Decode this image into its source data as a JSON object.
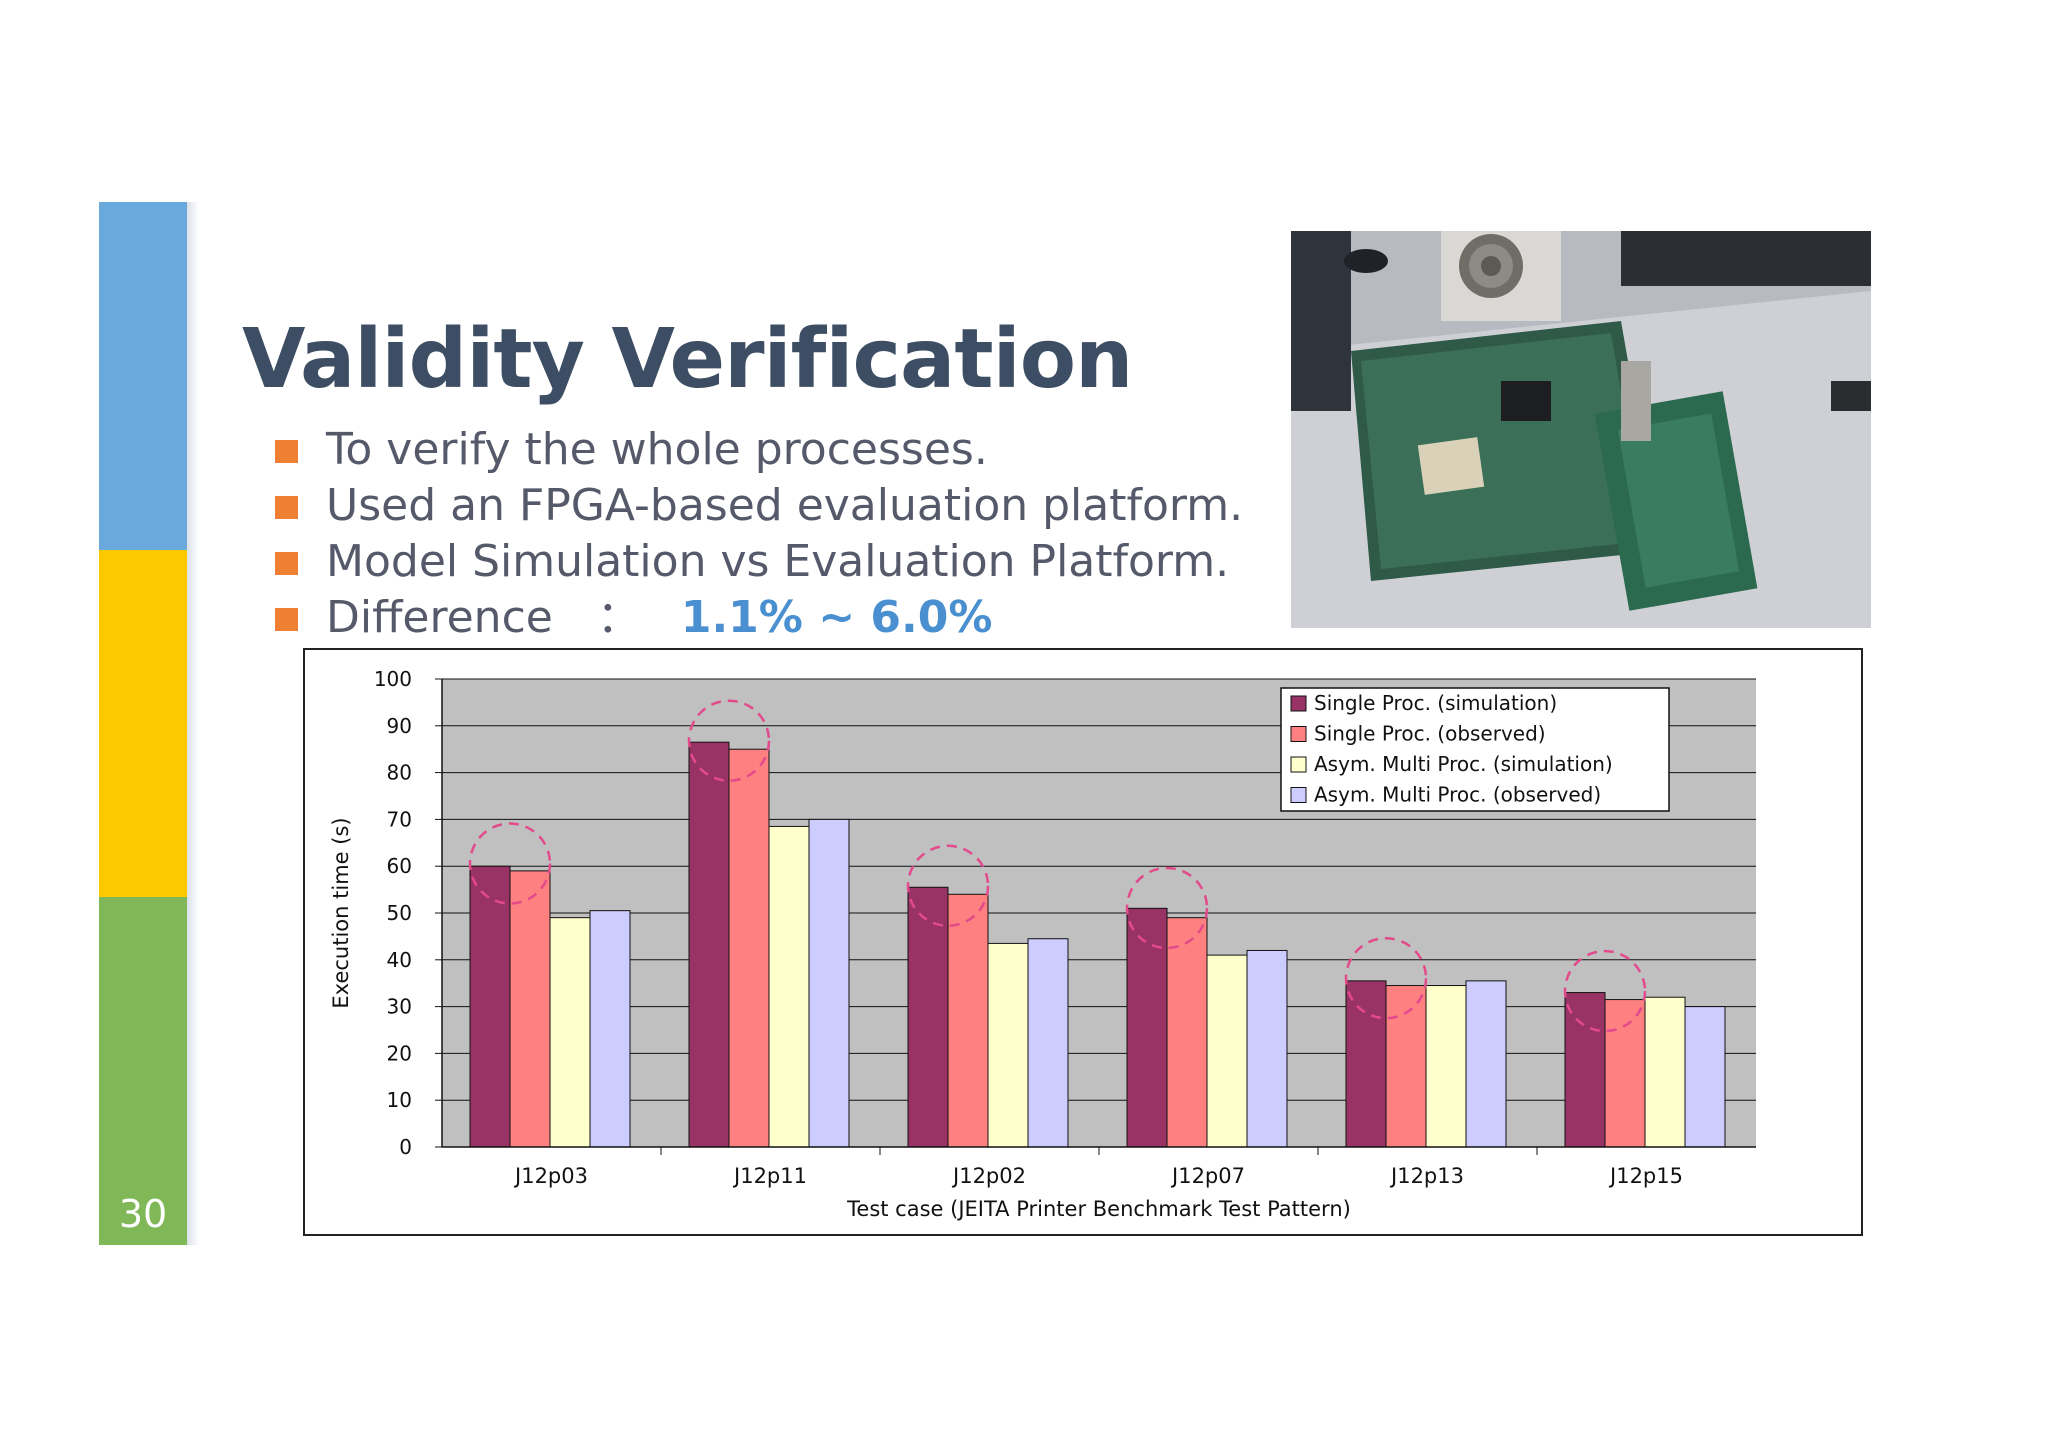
{
  "slide": {
    "page_number": "30",
    "title": "Validity Verification",
    "bullets": [
      "To verify the whole processes.",
      "Used an FPGA-based evaluation platform.",
      "Model Simulation vs Evaluation Platform."
    ],
    "difference_label": "Difference　：",
    "difference_value": "1.1% ~ 6.0%",
    "side_colors": [
      "#6aa9db",
      "#fec900",
      "#80b857"
    ],
    "bullet_color": "#ef7f33",
    "accent_color": "#4a90d0"
  },
  "chart_data": {
    "type": "bar",
    "xlabel": "Test case (JEITA Printer Benchmark Test Pattern)",
    "ylabel": "Execution time (s)",
    "ylim": [
      0,
      100
    ],
    "yticks": [
      0,
      10,
      20,
      30,
      40,
      50,
      60,
      70,
      80,
      90,
      100
    ],
    "grid": true,
    "legend_position": "top-right",
    "categories": [
      "J12p03",
      "J12p11",
      "J12p02",
      "J12p07",
      "J12p13",
      "J12p15"
    ],
    "series": [
      {
        "name": "Single Proc. (simulation)",
        "color": "#993366",
        "values": [
          60,
          86.5,
          55.5,
          51,
          35.5,
          33
        ]
      },
      {
        "name": "Single Proc. (observed)",
        "color": "#ff8080",
        "values": [
          59,
          85,
          54,
          49,
          34.5,
          31.5
        ]
      },
      {
        "name": "Asym. Multi Proc. (simulation)",
        "color": "#ffffcc",
        "values": [
          49,
          68.5,
          43.5,
          41,
          34.5,
          32
        ]
      },
      {
        "name": "Asym. Multi Proc. (observed)",
        "color": "#ccccff",
        "values": [
          50.5,
          70,
          44.5,
          42,
          35.5,
          30
        ]
      }
    ],
    "highlight_marks": "dashed-circle-between-simulation-and-observed",
    "highlight_color": "#e24a8c"
  }
}
